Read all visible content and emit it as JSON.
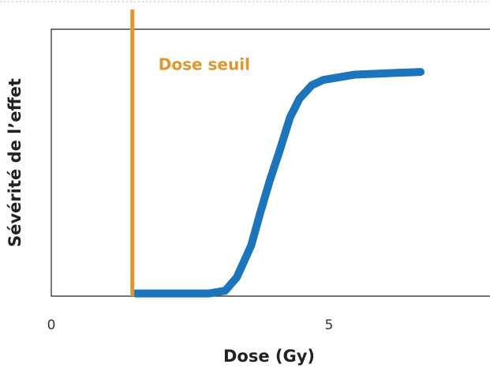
{
  "chart_data": {
    "type": "line",
    "xlabel": "Dose (Gy)",
    "ylabel": "Sévérité de l’effet",
    "annotation": "Dose seuil",
    "threshold": 1.46,
    "threshold_color": "#e0962a",
    "x": [
      1.52,
      2.3,
      2.84,
      3.13,
      3.34,
      3.6,
      3.76,
      3.93,
      4.12,
      4.3,
      4.47,
      4.69,
      4.9,
      5.47,
      6.65
    ],
    "series": [
      {
        "name": null,
        "color": "#1a75bc",
        "values": [
          0.01,
          0.01,
          0.01,
          0.02,
          0.07,
          0.19,
          0.31,
          0.43,
          0.55,
          0.67,
          0.74,
          0.79,
          0.81,
          0.83,
          0.84
        ]
      }
    ],
    "xlim": [
      0,
      7.9
    ],
    "ylim": [
      0,
      1
    ],
    "xticks": [
      0,
      5
    ]
  }
}
